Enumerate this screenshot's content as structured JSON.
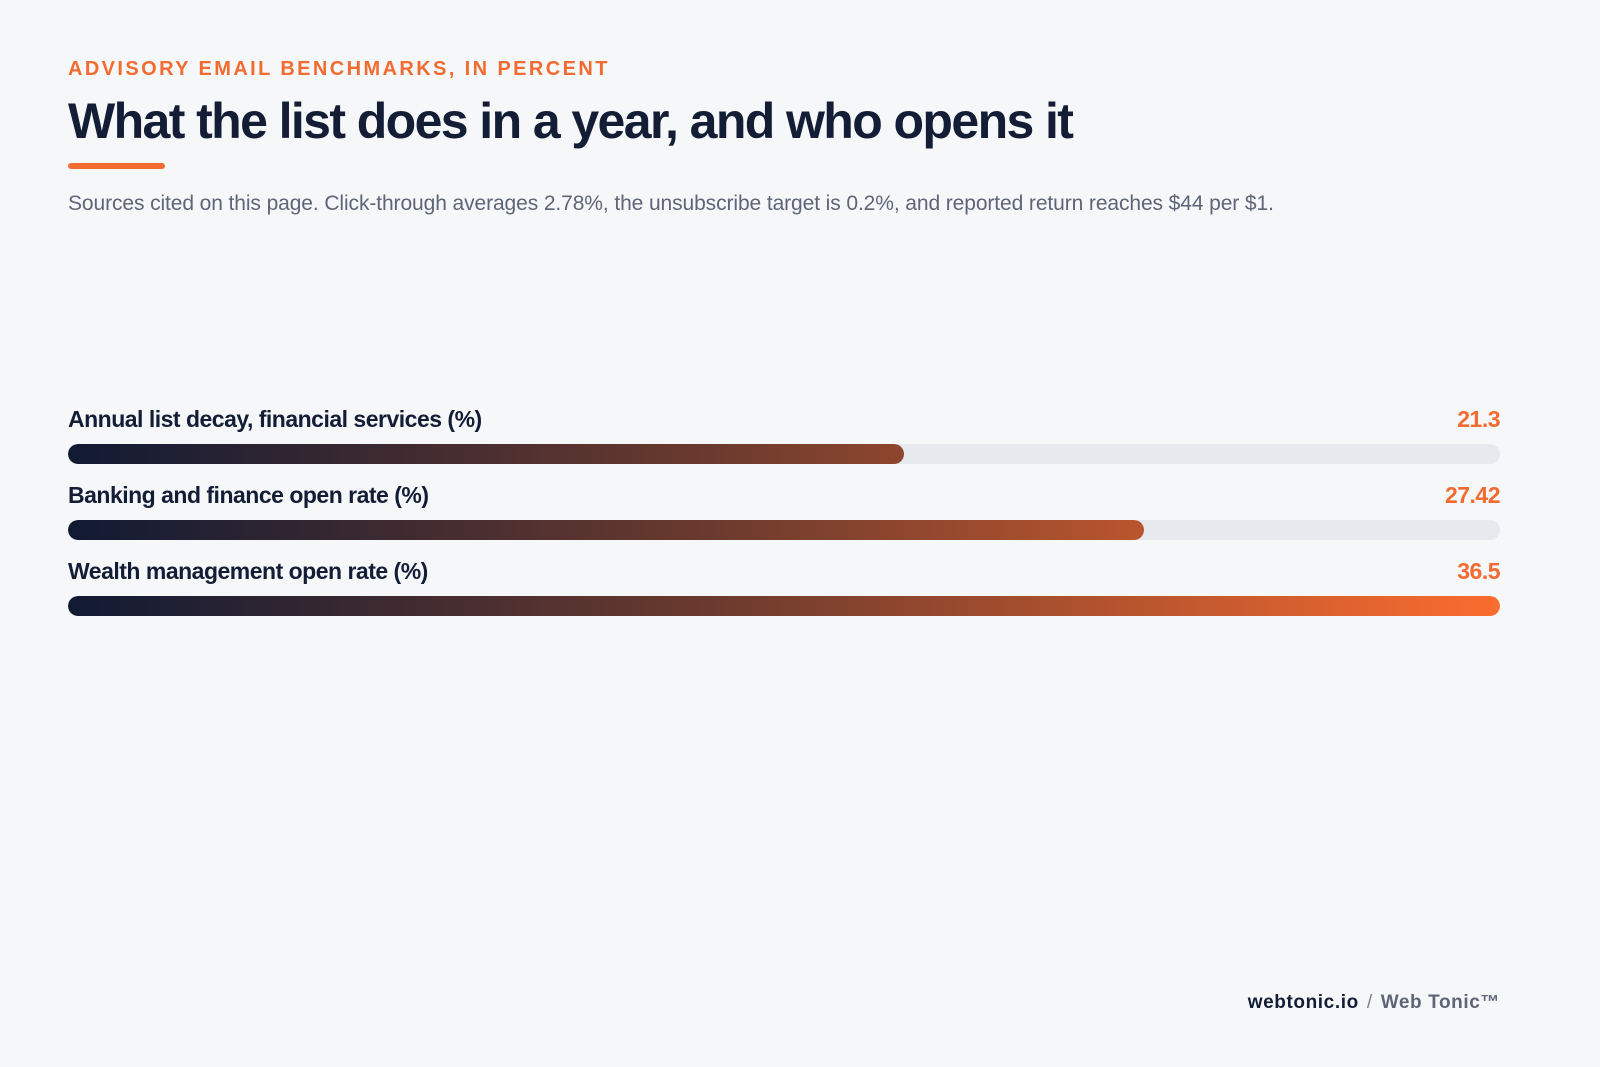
{
  "header": {
    "eyebrow": "ADVISORY EMAIL BENCHMARKS, IN PERCENT",
    "title": "What the list does in a year, and who opens it",
    "subtitle": "Sources cited on this page. Click-through averages 2.78%, the unsubscribe target is 0.2%, and reported return reaches $44 per $1."
  },
  "colors": {
    "accent": "#f26b30",
    "navy": "#131d36",
    "track": "#e6e9ee",
    "background": "#f6f7f9",
    "gradient_start": "#101a33",
    "gradient_end": "#fb6c2f"
  },
  "chart_data": {
    "type": "bar",
    "orientation": "horizontal",
    "categories": [
      "Annual list decay, financial services (%)",
      "Banking and finance open rate (%)",
      "Wealth management open rate (%)"
    ],
    "values": [
      21.3,
      27.42,
      36.5
    ],
    "value_labels": [
      "21.3",
      "27.42",
      "36.5"
    ],
    "xlim": [
      0,
      36.5
    ],
    "grid": false,
    "legend": "none"
  },
  "footer": {
    "site": "webtonic.io",
    "separator": "/",
    "brand": "Web Tonic™"
  }
}
